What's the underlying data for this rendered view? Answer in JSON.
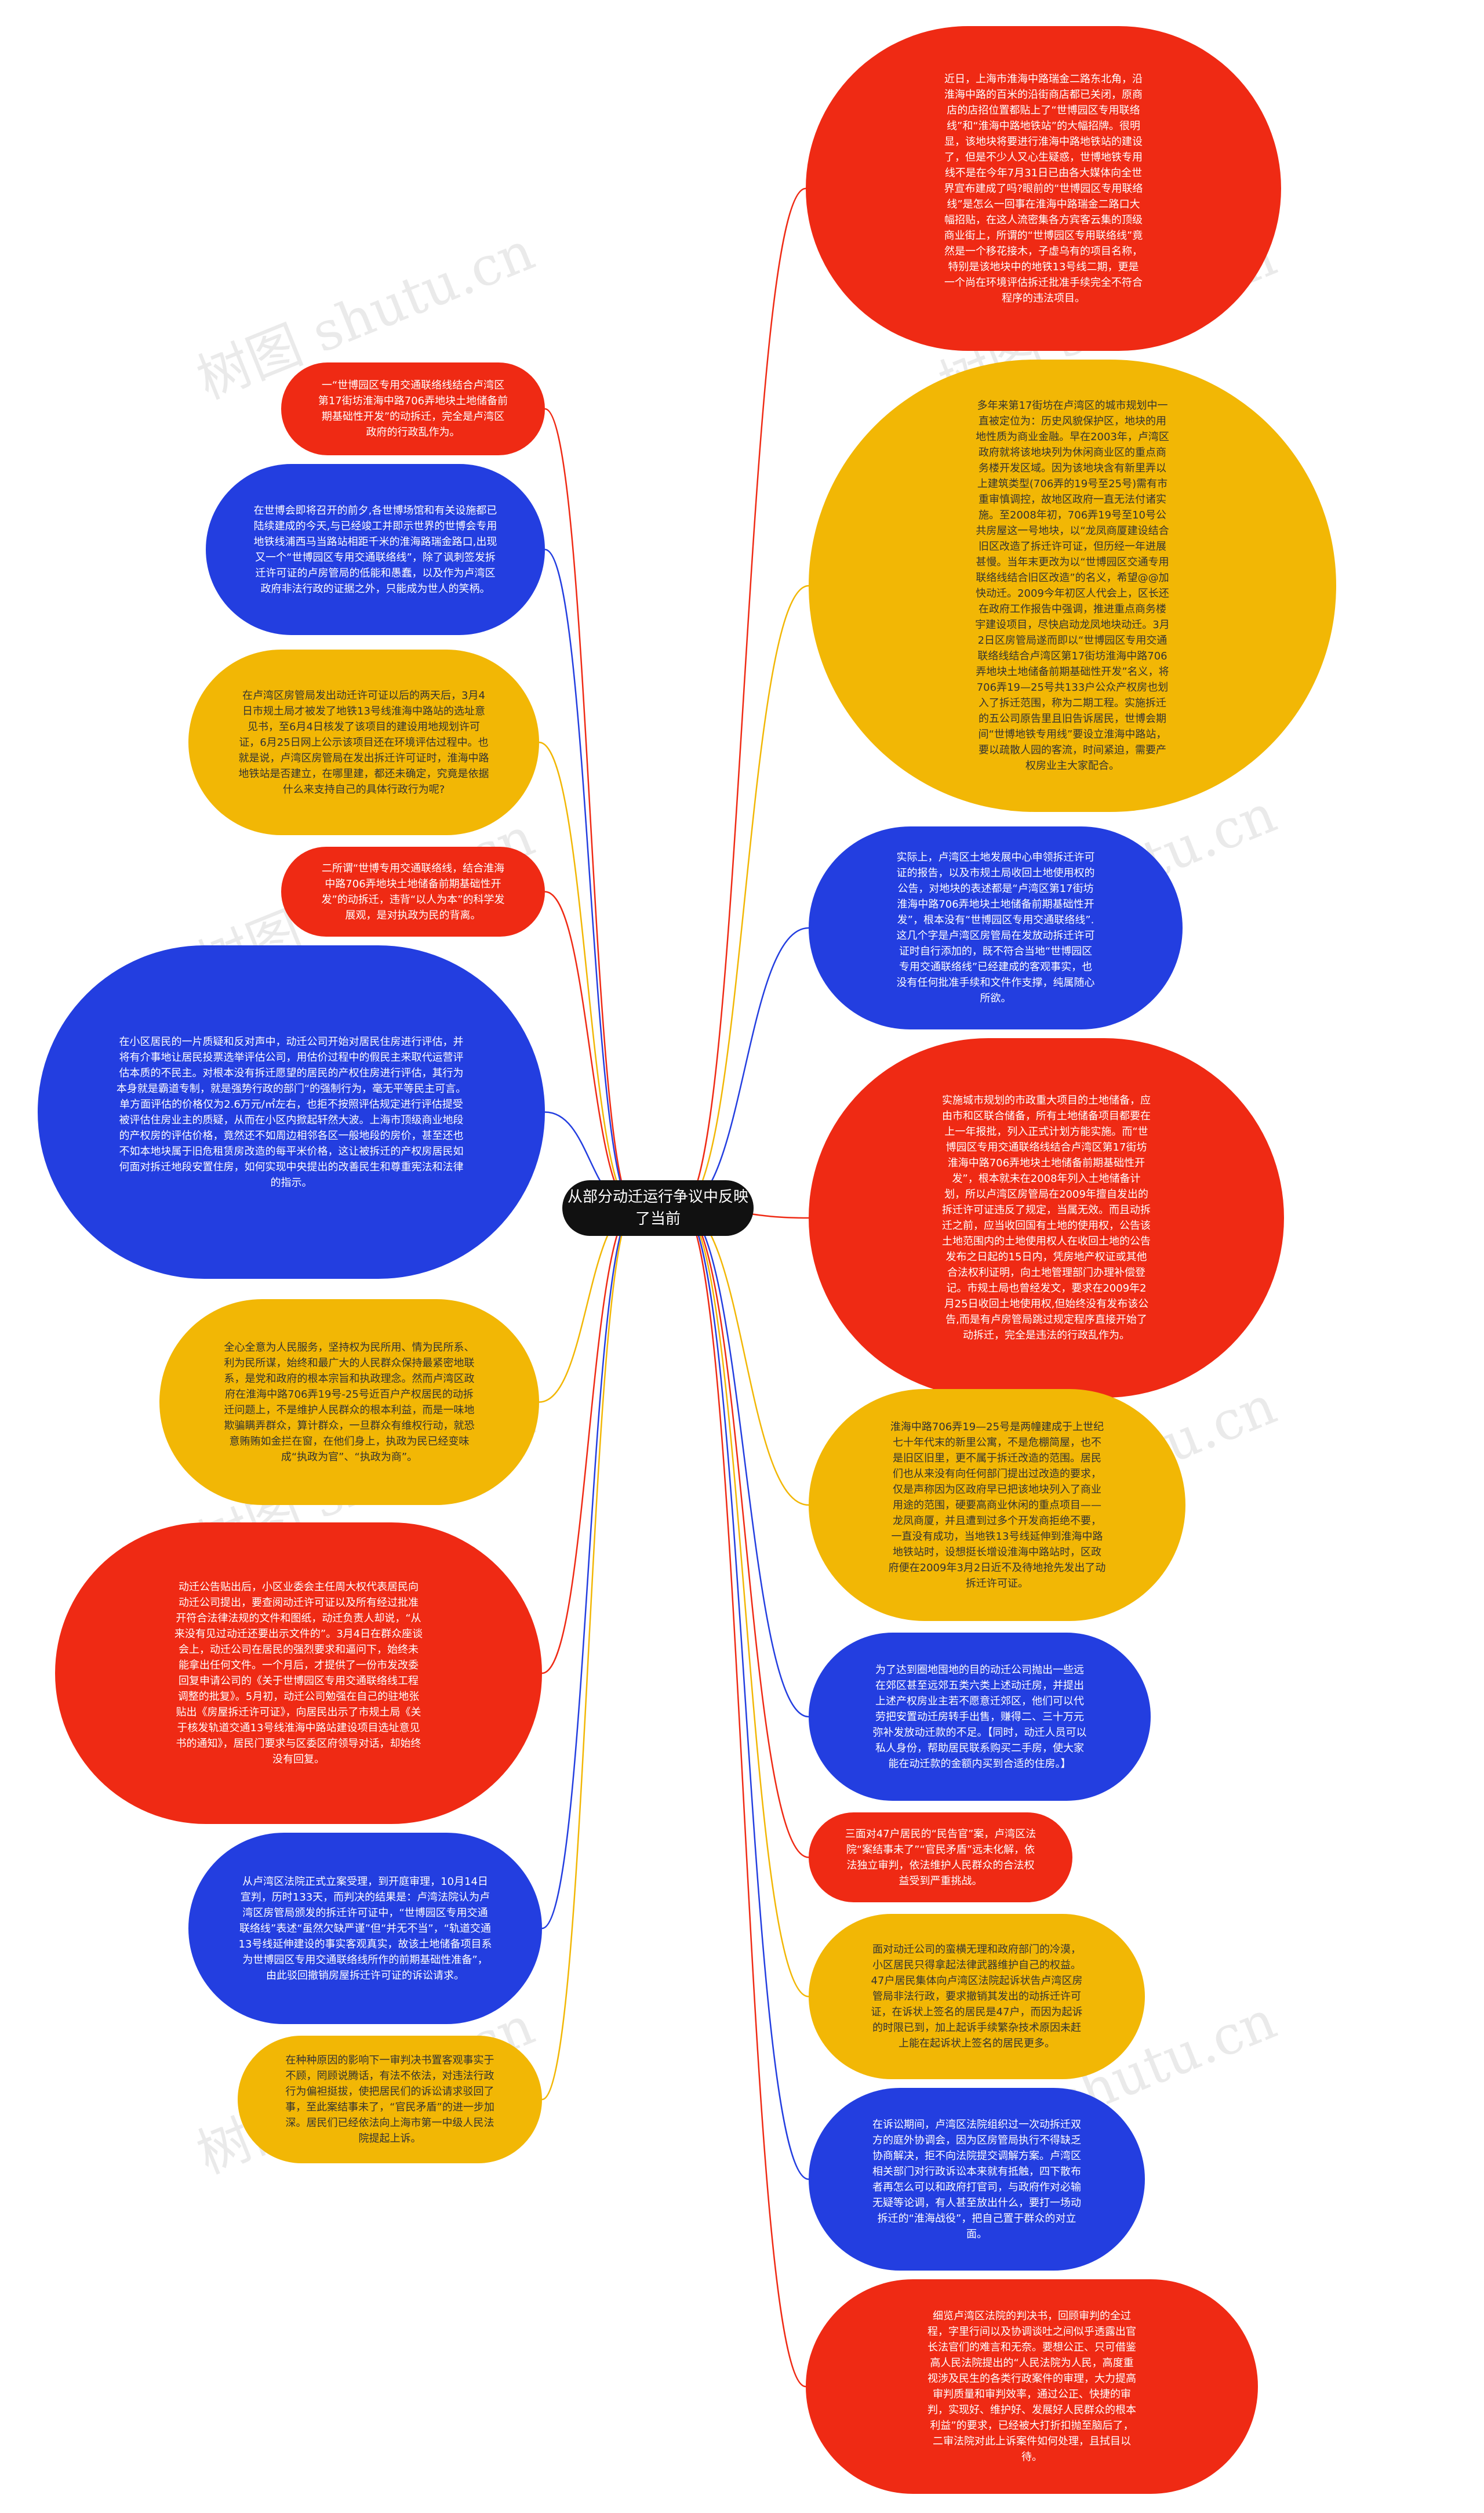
{
  "center": {
    "label": "从部分动迁运行争议中反映了当前"
  },
  "watermark": "树图 shutu.cn",
  "colors": {
    "red": "#ef2a14",
    "yellow": "#f2b705",
    "blue": "#233ee0",
    "center": "#111111"
  },
  "left_nodes": [
    {
      "color": "red",
      "text": "一“世博园区专用交通联络线结合卢湾区第17街坊淮海中路706弄地块土地储备前期基础性开发”的动拆迁，完全是卢湾区政府的行政乱作为。"
    },
    {
      "color": "blue",
      "text": "在世博会即将召开的前夕,各世博场馆和有关设施都已陆续建成的今天,与已经竣工并即示世界的世博会专用地铁线浦西马当路站相距千米的淮海路瑞金路口,出现又一个“世博园区专用交通联络线”，除了讽刺签发拆迁许可证的卢房管局的低能和愚蠢，以及作为卢湾区政府非法行政的证据之外，只能成为世人的笑柄。"
    },
    {
      "color": "yellow",
      "text": "在卢湾区房管局发出动迁许可证以后的两天后，3月4日市规土局才被发了地铁13号线淮海中路站的选址意见书，至6月4日核发了该项目的建设用地规划许可证，6月25日网上公示该项目还在环境评估过程中。也就是说，卢湾区房管局在发出拆迁许可证时，淮海中路地铁站是否建立，在哪里建，都还未确定，究竟是依据什么来支持自己的具体行政行为呢?"
    },
    {
      "color": "red",
      "text": "二所谓“世博专用交通联络线，结合淮海中路706弄地块土地储备前期基础性开发”的动拆迁，违背“以人为本”的科学发展观，是对执政为民的背离。"
    },
    {
      "color": "blue",
      "text": "在小区居民的一片质疑和反对声中，动迁公司开始对居民住房进行评估，并将有介事地让居民投票选举评估公司，用估价过程中的假民主来取代运营评估本质的不民主。对根本没有拆迁愿望的居民的产权住房进行评估，其行为本身就是霸道专制，就是强势行政的部门“的强制行为，毫无平等民主可言。单方面评估的价格仅为2.6万元/㎡左右，也拒不按照评估规定进行评估提受被评估住房业主的质疑，从而在小区内掀起轩然大波。上海市顶级商业地段的产权房的评估价格，竟然还不如周边相邻各区一般地段的房价，甚至还也不如本地块属于旧危租赁房改造的每平米价格，这让被拆迁的产权房居民如何面对拆迁地段安置住房，如何实现中央提出的改善民生和尊重宪法和法律的指示。"
    },
    {
      "color": "yellow",
      "text": "全心全意为人民服务，坚持权为民所用、情为民所系、利为民所谋，始终和最广大的人民群众保持最紧密地联系，是党和政府的根本宗旨和执政理念。然而卢湾区政府在淮海中路706弄19号-25号近百户产权居民的动拆迁问题上，不是维护人民群众的根本利益，而是一味地欺骗瞒弄群众，算计群众，一旦群众有维权行动，就恐意贿贿如金拦在窗，在他们身上，执政为民已经变味成“执政为官”、“执政为商”。"
    },
    {
      "color": "red",
      "text": "动迁公告贴出后，小区业委会主任周大权代表居民向动迁公司提出，要查阅动迁许可证以及所有经过批准开符合法律法规的文件和图纸，动迁负责人却说，“从来没有见过动迁还要出示文件的”。3月4日在群众座谈会上，动迁公司在居民的强烈要求和逼问下，始终未能拿出任何文件。一个月后，才提供了一份市发改委回复申请公司的《关于世博园区专用交通联络线工程调整的批复》。5月初，动迁公司勉强在自己的驻地张贴出《房屋拆迁许可证》，向居民出示了市规土局《关于核发轨道交通13号线淮海中路站建设项目选址意见书的通知》，居民门要求与区委区府领导对话，却始终没有回复。"
    },
    {
      "color": "blue",
      "text": "从卢湾区法院正式立案受理，到开庭审理，10月14日宣判，历时133天，而判决的结果是：卢湾法院认为卢湾区房管局颁发的拆迁许可证中，“世博园区专用交通联络线”表述“虽然欠缺严谨”但“并无不当”，“轨道交通13号线延伸建设的事实客观真实，故该土地储备项目系为世博园区专用交通联络线所作的前期基础性准备”，由此驳回撤销房屋拆迁许可证的诉讼请求。"
    },
    {
      "color": "yellow",
      "text": "在种种原因的影响下一审判决书置客观事实于不顾，罔顾说腾话，有法不依法，对违法行政行为偏袒挺拔，使把居民们的诉讼请求驳回了事，至此案结事未了，“官民矛盾”的进一步加深。居民们已经依法向上海市第一中级人民法院提起上诉。"
    }
  ],
  "right_nodes": [
    {
      "color": "red",
      "text": "近日，上海市淮海中路瑞金二路东北角，沿淮海中路的百米的沿街商店都已关闭，原商店的店招位置都贴上了“世博园区专用联络线”和“淮海中路地铁站”的大幅招牌。很明显，该地块将要进行淮海中路地铁站的建设了，但是不少人又心生疑惑，世博地铁专用线不是在今年7月31日已由各大媒体向全世界宣布建成了吗?眼前的“世博园区专用联络线”是怎么一回事在淮海中路瑞金二路口大幅招贴，在这人流密集各方宾客云集的顶级商业街上，所谓的“世博园区专用联络线”竟然是一个移花接木，子虚乌有的项目名称，特别是该地块中的地铁13号线二期，更是一个尚在环境评估拆迁批准手续完全不符合程序的违法项目。"
    },
    {
      "color": "yellow",
      "text": "多年来第17街坊在卢湾区的城市规划中一直被定位为：历史风貌保护区，地块的用地性质为商业金融。早在2003年，卢湾区政府就将该地块列为休闲商业区的重点商务楼开发区域。因为该地块含有新里弄以上建筑类型(706弄的19号至25号)需有市重审慎调控，故地区政府一直无法付诸实施。至2008年初，706弄19号至10号公共房屋这一号地块，以“龙凤商厦建设结合旧区改造了拆迁许可证，但历经一年进展甚慢。当年末更改为以“世博园区交通专用联络线结合旧区改造”的名义，希望@@加快动迁。2009今年初区人代会上，区长还在政府工作报告中强调，推进重点商务楼宇建设项目，尽快启动龙凤地块动迁。3月2日区房管局遂而即以“世博园区专用交通联络线结合卢湾区第17街坊淮海中路706弄地块土地储备前期基础性开发”名义，将706弄19—25号共133户公众产权房也划入了拆迁范围，称为二期工程。实施拆迁的五公司原告里且旧告诉居民，世博会期间“世博地铁专用线”要设立淮海中路站，要以疏散人园的客流，时间紧迫，需要产权房业主大家配合。"
    },
    {
      "color": "blue",
      "text": "实际上，卢湾区土地发展中心申领拆迁许可证的报告，以及市规土局收回土地使用权的公告，对地块的表述都是“卢湾区第17街坊淮海中路706弄地块土地储备前期基础性开发”，根本没有“世博园区专用交通联络线”.这几个字是卢湾区房管局在发放动拆迁许可证时自行添加的，既不符合当地“世博园区专用交通联络线”已经建成的客观事实，也没有任何批准手续和文件作支撑，纯属随心所欲。"
    },
    {
      "color": "red",
      "text": "实施城市规划的市政重大项目的土地储备，应由市和区联合储备，所有土地储备项目都要在上一年报批，列入正式计划方能实施。而“世博园区专用交通联络线结合卢湾区第17街坊淮海中路706弄地块土地储备前期基础性开发”，根本就未在2008年列入土地储备计划，所以卢湾区房管局在2009年擅自发出的拆迁许可证违反了规定，当属无效。而且动拆迁之前，应当收回国有土地的使用权，公告该土地范围内的土地使用权人在收回土地的公告发布之日起的15日内，凭房地产权证或其他合法权利证明，向土地管理部门办理补偿登记。市规土局也曾经发文，要求在2009年2月25日收回土地使用权,但始终没有发布该公告,而是有卢房管局跳过规定程序直接开始了动拆迁，完全是违法的行政乱作为。"
    },
    {
      "color": "yellow",
      "text": "淮海中路706弄19—25号是两幢建成于上世纪七十年代末的新里公寓，不是危棚简屋，也不是旧区旧里，更不属于拆迁改造的范围。居民们也从来没有向任何部门提出过改造的要求，仅是声称因为区政府早已把该地块列入了商业用途的范围，硬要高商业休闲的重点项目——龙凤商厦，并且遭到过多个开发商拒绝不要，一直没有成功，当地铁13号线延伸到淮海中路地铁站时，设想挺长增设淮海中路站时，区政府便在2009年3月2日近不及待地抢先发出了动拆迁许可证。"
    },
    {
      "color": "blue",
      "text": "为了达到圈地囤地的目的动迁公司抛出一些远在郊区甚至远郊五类六类上述动迁房，并提出上述产权房业主若不愿意迁郊区，他们可以代劳把安置动迁房转手出售，赚得二、三十万元弥补发放动迁款的不足。【同时，动迁人员可以私人身份，帮助居民联系购买二手房，使大家能在动迁款的金额内买到合适的住房。】"
    },
    {
      "color": "red",
      "text": "三面对47户居民的“民告官”案，卢湾区法院“案结事未了”“官民矛盾”远未化解，依法独立审判，依法维护人民群众的合法权益受到严重挑战。"
    },
    {
      "color": "yellow",
      "text": "面对动迁公司的蛮横无理和政府部门的冷漠，小区居民只得拿起法律武器维护自己的权益。47户居民集体向卢湾区法院起诉状告卢湾区房管局非法行政，要求撤销其发出的动拆迁许可证，在诉状上签名的居民是47户，而因为起诉的时限已到，加上起诉手续繁杂技术原因未赶上能在起诉状上签名的居民更多。"
    },
    {
      "color": "blue",
      "text": "在诉讼期间，卢湾区法院组织过一次动拆迁双方的庭外协调会，因为区房管局执行不得缺乏协商解决，拒不向法院提交调解方案。卢湾区相关部门对行政诉讼本来就有抵触，四下散布者再怎么可以和政府打官司，与政府作对必输无疑等论调，有人甚至放出什么，要打一场动拆迁的“淮海战役”，把自己置于群众的对立面。"
    },
    {
      "color": "red",
      "text": "细览卢湾区法院的判决书，回顾审判的全过程，字里行间以及协调谈吐之间似乎透露出官长法官们的难言和无奈。要想公正、只可借鉴高人民法院提出的“人民法院为人民，高度重视涉及民生的各类行政案件的审理，大力提高审判质量和审判效率，通过公正、快捷的审判，实现好、维护好、发展好人民群众的根本利益”的要求，已经被大打折扣抛至脑后了，二审法院对此上诉案件如何处理，且拭目以待。"
    }
  ]
}
